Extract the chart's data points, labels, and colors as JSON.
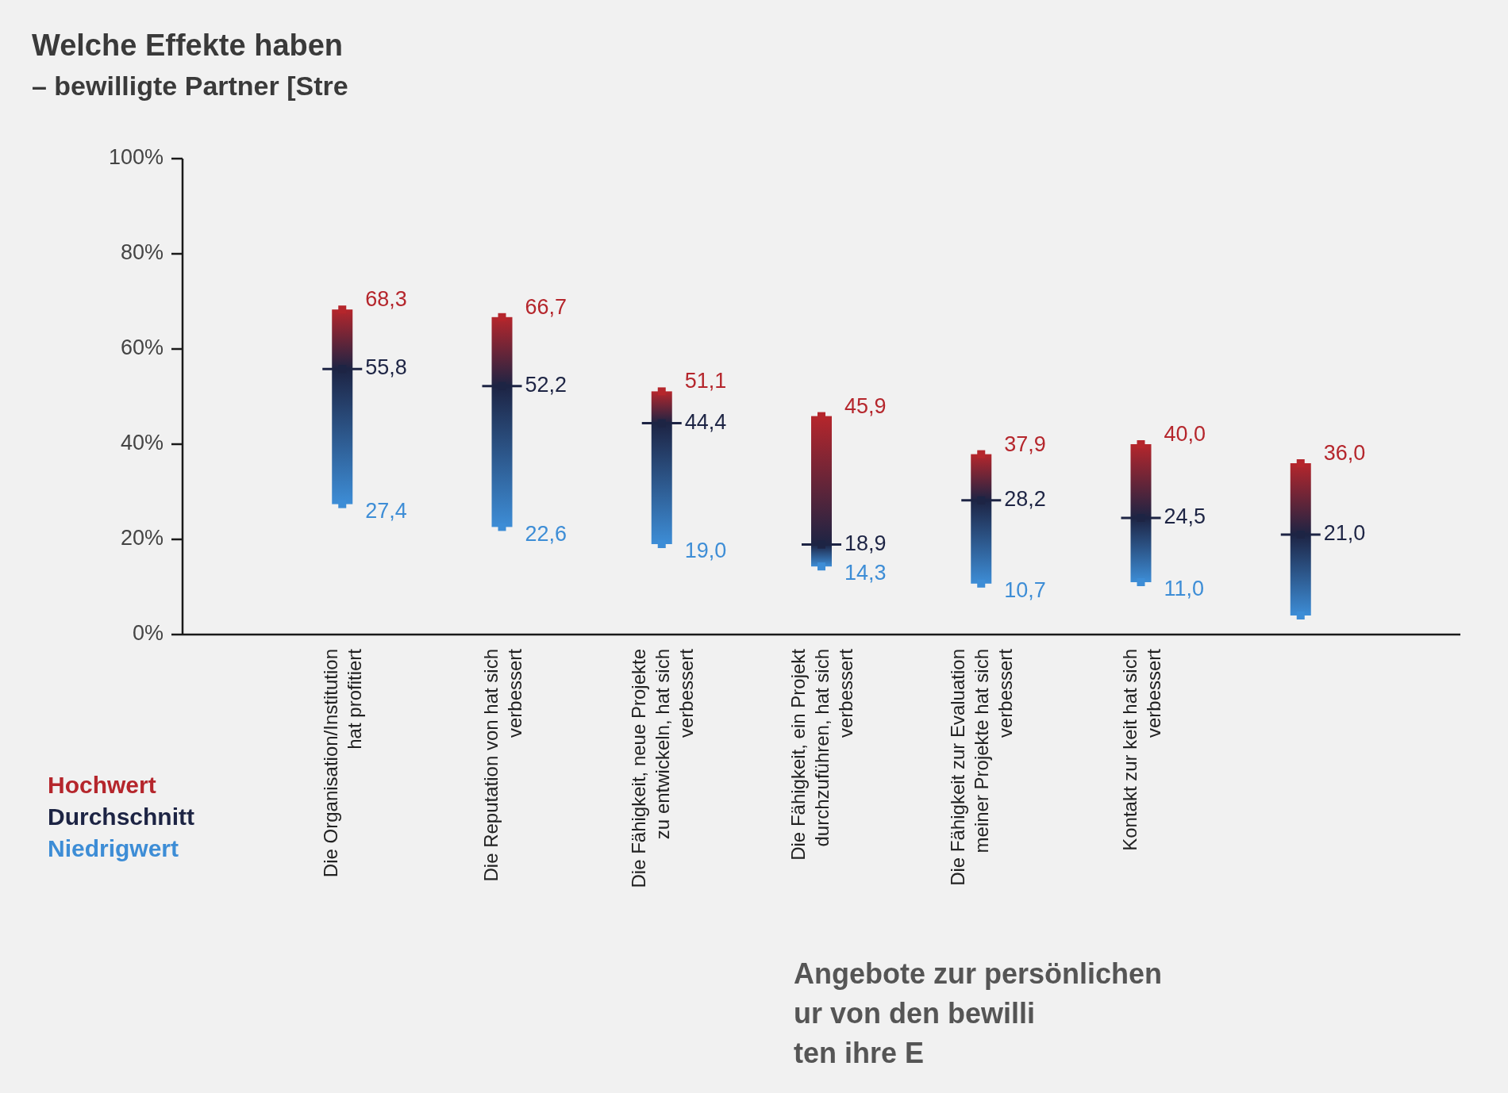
{
  "chart_data": {
    "type": "bar",
    "title": "Welche Effekte haben",
    "subtitle": "– bewilligte Partner [Stre",
    "categories": [
      "Die Organisation/Institution hat profitiert",
      "Die Reputation von hat sich verbessert",
      "Die Fähigkeit, neue Projekte zu entwickeln, hat sich verbessert",
      "Die Fähigkeit, ein Projekt durchzuführen, hat sich verbessert",
      "Die Fähigkeit zur Evaluation meiner Projekte hat sich verbessert",
      "Kontakt zur keit hat sich verbessert",
      null
    ],
    "series": [
      {
        "type": "bar",
        "base": [
          27.4,
          22.6,
          19.0,
          14.3,
          10.7,
          11.0,
          4
        ],
        "values": [
          40.9,
          44.1,
          32.1,
          31.6,
          27.2,
          29.0,
          32
        ]
      },
      {
        "name": "Hochwert",
        "type": "scatter",
        "marker": "square",
        "color": "#b5262c",
        "values": [
          68.3,
          66.7,
          51.1,
          45.9,
          37.9,
          40.0,
          36.0
        ],
        "value_labels": [
          "68,3",
          "66,7",
          "51,1",
          "45,9",
          "37,9",
          "40,0",
          "36,0"
        ]
      },
      {
        "name": "Durchschnitt",
        "type": "scatter",
        "marker": "square",
        "color": "#1d2444",
        "values": [
          55.8,
          52.2,
          44.4,
          18.9,
          28.2,
          24.5,
          21.0
        ],
        "value_labels": [
          "55,8",
          "52,2",
          "44,4",
          "18,9",
          "28,2",
          "24,5",
          "21,0"
        ]
      },
      {
        "name": "Niedrigwert",
        "type": "scatter",
        "marker": "square",
        "color": "#3d8dd6",
        "values": [
          27.4,
          22.6,
          19.0,
          14.3,
          10.7,
          11.0,
          4
        ],
        "value_labels": [
          "27,4",
          "22,6",
          "19,0",
          "14,3",
          "10,7",
          "11,0",
          null
        ]
      }
    ],
    "ylim": [
      0,
      100
    ],
    "yticks": [
      {
        "value": 0,
        "label": "0%"
      },
      {
        "value": 20,
        "label": "20%"
      },
      {
        "value": 40,
        "label": "40%"
      },
      {
        "value": 60,
        "label": "60%"
      },
      {
        "value": 80,
        "label": "80%"
      },
      {
        "value": 100,
        "label": "100%"
      }
    ],
    "legend": "bottom left",
    "annotations": [
      "Angebote zur persönlichen",
      "ur von den bewilli",
      "ten ihre E"
    ]
  }
}
